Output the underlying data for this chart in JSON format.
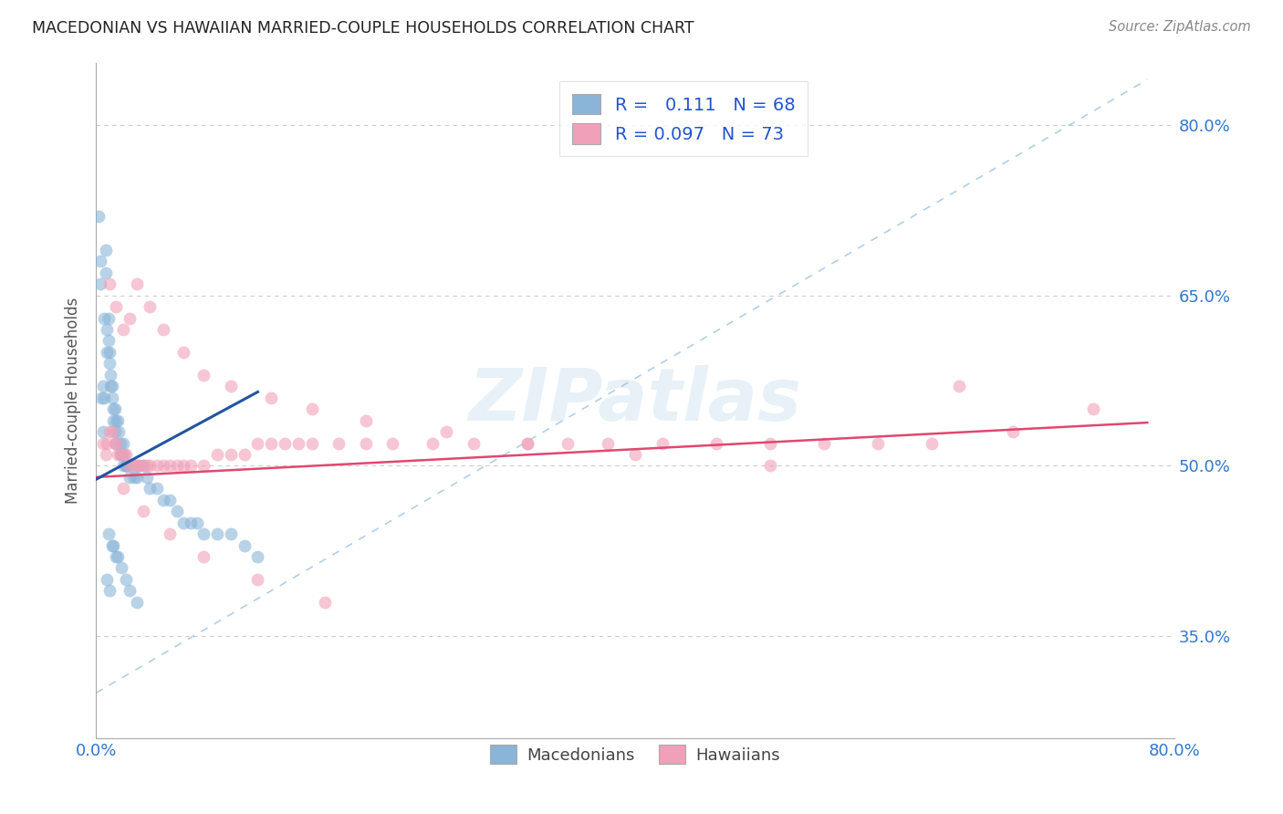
{
  "title": "MACEDONIAN VS HAWAIIAN MARRIED-COUPLE HOUSEHOLDS CORRELATION CHART",
  "source": "Source: ZipAtlas.com",
  "ylabel": "Married-couple Households",
  "xlim": [
    0.0,
    0.8
  ],
  "ylim": [
    0.26,
    0.855
  ],
  "ytick_positions": [
    0.35,
    0.5,
    0.65,
    0.8
  ],
  "ytick_labels": [
    "35.0%",
    "50.0%",
    "65.0%",
    "80.0%"
  ],
  "xtick_positions": [
    0.0,
    0.1,
    0.2,
    0.3,
    0.4,
    0.5,
    0.6,
    0.7,
    0.8
  ],
  "xtick_labels": [
    "0.0%",
    "",
    "",
    "",
    "",
    "",
    "",
    "",
    "80.0%"
  ],
  "bottom_legend": [
    "Macedonians",
    "Hawaiians"
  ],
  "blue_scatter_color": "#8ab4d8",
  "pink_scatter_color": "#f0a0b8",
  "blue_line_color": "#2255a0",
  "pink_line_color": "#e04870",
  "dashed_line_color": "#8ab4d8",
  "grid_color": "#cccccc",
  "right_axis_label_color": "#3377cc",
  "legend_label_color": "#2255cc",
  "watermark_color": "#d0e4f0",
  "macedonian_x": [
    0.002,
    0.003,
    0.003,
    0.004,
    0.005,
    0.005,
    0.006,
    0.006,
    0.007,
    0.007,
    0.008,
    0.008,
    0.009,
    0.009,
    0.01,
    0.01,
    0.011,
    0.011,
    0.012,
    0.012,
    0.013,
    0.013,
    0.014,
    0.014,
    0.015,
    0.015,
    0.016,
    0.017,
    0.018,
    0.018,
    0.019,
    0.02,
    0.02,
    0.021,
    0.022,
    0.022,
    0.023,
    0.025,
    0.026,
    0.028,
    0.03,
    0.032,
    0.035,
    0.038,
    0.04,
    0.045,
    0.05,
    0.055,
    0.06,
    0.065,
    0.07,
    0.075,
    0.08,
    0.09,
    0.1,
    0.11,
    0.12,
    0.009,
    0.012,
    0.015,
    0.008,
    0.01,
    0.013,
    0.016,
    0.019,
    0.022,
    0.025,
    0.03
  ],
  "macedonian_y": [
    0.72,
    0.68,
    0.66,
    0.56,
    0.57,
    0.53,
    0.63,
    0.56,
    0.69,
    0.67,
    0.62,
    0.6,
    0.63,
    0.61,
    0.6,
    0.59,
    0.58,
    0.57,
    0.57,
    0.56,
    0.55,
    0.54,
    0.55,
    0.53,
    0.54,
    0.52,
    0.54,
    0.53,
    0.52,
    0.51,
    0.51,
    0.52,
    0.5,
    0.51,
    0.5,
    0.5,
    0.5,
    0.49,
    0.5,
    0.49,
    0.49,
    0.5,
    0.5,
    0.49,
    0.48,
    0.48,
    0.47,
    0.47,
    0.46,
    0.45,
    0.45,
    0.45,
    0.44,
    0.44,
    0.44,
    0.43,
    0.42,
    0.44,
    0.43,
    0.42,
    0.4,
    0.39,
    0.43,
    0.42,
    0.41,
    0.4,
    0.39,
    0.38
  ],
  "hawaiian_x": [
    0.005,
    0.007,
    0.008,
    0.01,
    0.012,
    0.014,
    0.015,
    0.016,
    0.018,
    0.02,
    0.022,
    0.025,
    0.028,
    0.03,
    0.032,
    0.035,
    0.038,
    0.04,
    0.045,
    0.05,
    0.055,
    0.06,
    0.065,
    0.07,
    0.08,
    0.09,
    0.1,
    0.11,
    0.12,
    0.13,
    0.14,
    0.15,
    0.16,
    0.18,
    0.2,
    0.22,
    0.25,
    0.28,
    0.32,
    0.35,
    0.38,
    0.42,
    0.46,
    0.5,
    0.54,
    0.58,
    0.62,
    0.68,
    0.74,
    0.01,
    0.015,
    0.02,
    0.025,
    0.03,
    0.04,
    0.05,
    0.065,
    0.08,
    0.1,
    0.13,
    0.16,
    0.2,
    0.26,
    0.32,
    0.4,
    0.5,
    0.64,
    0.02,
    0.035,
    0.055,
    0.08,
    0.12,
    0.17
  ],
  "hawaiian_y": [
    0.52,
    0.51,
    0.52,
    0.53,
    0.53,
    0.52,
    0.52,
    0.51,
    0.51,
    0.51,
    0.51,
    0.5,
    0.5,
    0.5,
    0.5,
    0.5,
    0.5,
    0.5,
    0.5,
    0.5,
    0.5,
    0.5,
    0.5,
    0.5,
    0.5,
    0.51,
    0.51,
    0.51,
    0.52,
    0.52,
    0.52,
    0.52,
    0.52,
    0.52,
    0.52,
    0.52,
    0.52,
    0.52,
    0.52,
    0.52,
    0.52,
    0.52,
    0.52,
    0.52,
    0.52,
    0.52,
    0.52,
    0.53,
    0.55,
    0.66,
    0.64,
    0.62,
    0.63,
    0.66,
    0.64,
    0.62,
    0.6,
    0.58,
    0.57,
    0.56,
    0.55,
    0.54,
    0.53,
    0.52,
    0.51,
    0.5,
    0.57,
    0.48,
    0.46,
    0.44,
    0.42,
    0.4,
    0.38
  ],
  "mac_line_x0": 0.0,
  "mac_line_x1": 0.12,
  "mac_line_y0": 0.488,
  "mac_line_y1": 0.565,
  "haw_line_x0": 0.0,
  "haw_line_x1": 0.78,
  "haw_line_y0": 0.49,
  "haw_line_y1": 0.538,
  "dash_line_x0": 0.0,
  "dash_line_x1": 0.78,
  "dash_line_y0": 0.3,
  "dash_line_y1": 0.84
}
